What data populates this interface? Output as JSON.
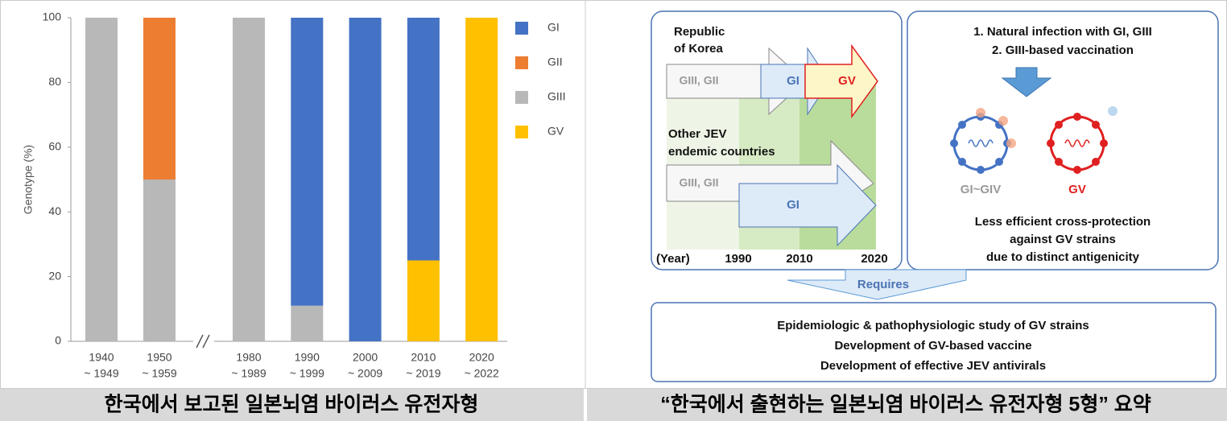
{
  "chart_data": {
    "type": "bar",
    "stacked": true,
    "y_label": "Genotype (%)",
    "categories": [
      [
        "1940",
        "~ 1949"
      ],
      [
        "1950",
        "~ 1959"
      ],
      [
        "1980",
        "~ 1989"
      ],
      [
        "1990",
        "~ 1999"
      ],
      [
        "2000",
        "~ 2009"
      ],
      [
        "2010",
        "~ 2019"
      ],
      [
        "2020",
        "~ 2022"
      ]
    ],
    "series": [
      {
        "name": "GI",
        "color": "#4472c4",
        "values": [
          0,
          0,
          0,
          89,
          100,
          75,
          0
        ]
      },
      {
        "name": "GII",
        "color": "#ed7d31",
        "values": [
          0,
          50,
          0,
          0,
          0,
          0,
          0
        ]
      },
      {
        "name": "GIII",
        "color": "#b8b8b8",
        "values": [
          100,
          50,
          100,
          11,
          0,
          0,
          0
        ]
      },
      {
        "name": "GV",
        "color": "#ffc000",
        "values": [
          0,
          0,
          0,
          0,
          0,
          25,
          100
        ]
      }
    ],
    "ylim": [
      0,
      100
    ],
    "yticks": [
      0,
      20,
      40,
      60,
      80,
      100
    ],
    "grid": false,
    "legend": "right"
  },
  "diagram": {
    "timeline": {
      "rows": [
        {
          "label": [
            "Republic",
            "of Korea"
          ],
          "arrows": [
            "GIII, GII",
            "GI",
            "GV"
          ]
        },
        {
          "label": [
            "Other JEV",
            "endemic countries"
          ],
          "arrows": [
            "GIII, GII",
            "GI"
          ]
        }
      ],
      "axis_label": "(Year)",
      "years": [
        "1990",
        "2010",
        "2020"
      ]
    },
    "immunity": {
      "causes": [
        "1. Natural infection with GI, GIII",
        "2. GIII-based vaccination"
      ],
      "strains": [
        "GI~GIV",
        "GV"
      ],
      "conclusion": [
        "Less efficient cross-protection",
        "against GV strains",
        "due to distinct antigenicity"
      ]
    },
    "connector": "Requires",
    "needs": [
      "Epidemiologic & pathophysiologic study of GV strains",
      "Development of GV-based vaccine",
      "Development of effective JEV antivirals"
    ]
  },
  "captions": [
    "한국에서 보고된 일본뇌염 바이러스 유전자형",
    "“한국에서 출현하는 일본뇌염 바이러스 유전자형 5형” 요약"
  ]
}
